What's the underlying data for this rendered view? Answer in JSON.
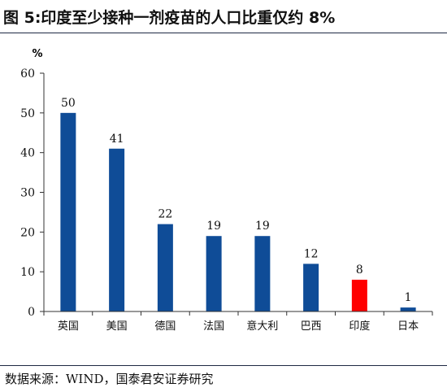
{
  "title": "图 5:印度至少接种一剂疫苗的人口比重仅约 8%",
  "source": "数据来源：WIND，国泰君安证券研究",
  "chart_data": {
    "type": "bar",
    "unit_label": "%",
    "categories": [
      "英国",
      "美国",
      "德国",
      "法国",
      "意大利",
      "巴西",
      "印度",
      "日本"
    ],
    "values": [
      50,
      41,
      22,
      19,
      19,
      12,
      8,
      1
    ],
    "data_labels": [
      "50",
      "41",
      "22",
      "19",
      "19",
      "12",
      "8",
      "1"
    ],
    "bar_colors": [
      "#0f4c97",
      "#0f4c97",
      "#0f4c97",
      "#0f4c97",
      "#0f4c97",
      "#0f4c97",
      "#ff0000",
      "#0f4c97"
    ],
    "ylim": [
      0,
      60
    ],
    "yticks": [
      0,
      10,
      20,
      30,
      40,
      50,
      60
    ],
    "grid": false,
    "xlabel": "",
    "ylabel": ""
  }
}
